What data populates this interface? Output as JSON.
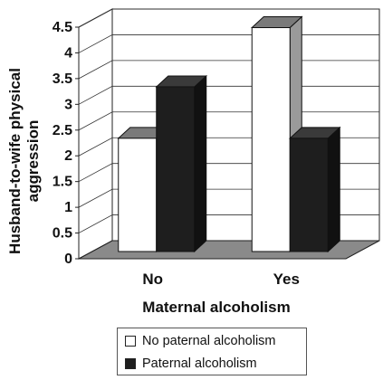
{
  "chart_data": {
    "type": "bar",
    "categories": [
      "No",
      "Yes"
    ],
    "series": [
      {
        "name": "No paternal alcoholism",
        "values": [
          2.2,
          4.35
        ],
        "color": "#ffffff"
      },
      {
        "name": "Paternal alcoholism",
        "values": [
          3.2,
          2.2
        ],
        "color": "#1e1e1e"
      }
    ],
    "title": "",
    "xlabel": "Maternal alcoholism",
    "ylabel": "Husband-to-wife physical aggression",
    "ylabel_lines": [
      "Husband-to-wife physical",
      "aggression"
    ],
    "ylim": [
      0,
      4.5
    ],
    "yticks": [
      "0",
      "0.5",
      "1",
      "1.5",
      "2",
      "2.5",
      "3",
      "3.5",
      "4",
      "4.5"
    ],
    "grid": true,
    "legend_position": "bottom",
    "style": "3d",
    "floor_color": "#8a8a8a",
    "wall_color": "#ffffff"
  }
}
